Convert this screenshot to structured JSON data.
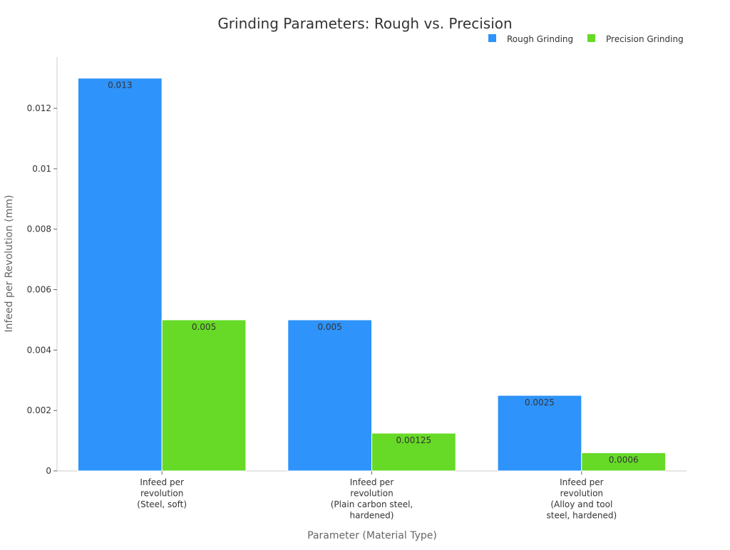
{
  "chart_data": {
    "type": "bar",
    "title": "Grinding Parameters: Rough vs. Precision",
    "xlabel": "Parameter (Material Type)",
    "ylabel": "Infeed per Revolution (mm)",
    "categories": [
      [
        "Infeed per",
        "revolution",
        "(Steel, soft)"
      ],
      [
        "Infeed per",
        "revolution",
        "(Plain carbon steel,",
        "hardened)"
      ],
      [
        "Infeed per",
        "revolution",
        "(Alloy and tool",
        "steel, hardened)"
      ]
    ],
    "series": [
      {
        "name": "Rough Grinding",
        "color": "#2E93FA",
        "values": [
          0.013,
          0.005,
          0.0025
        ],
        "labels": [
          "0.013",
          "0.005",
          "0.0025"
        ]
      },
      {
        "name": "Precision Grinding",
        "color": "#66DA26",
        "values": [
          0.005,
          0.00125,
          0.0006
        ],
        "labels": [
          "0.005",
          "0.00125",
          "0.0006"
        ]
      }
    ],
    "ylim": [
      0,
      0.0137
    ],
    "yticks": [
      0,
      0.002,
      0.004,
      0.006,
      0.008,
      0.01,
      0.012
    ],
    "ytick_labels": [
      "0",
      "0.002",
      "0.004",
      "0.006",
      "0.008",
      "0.01",
      "0.012"
    ],
    "grid": false,
    "legend_position": "top-right"
  }
}
